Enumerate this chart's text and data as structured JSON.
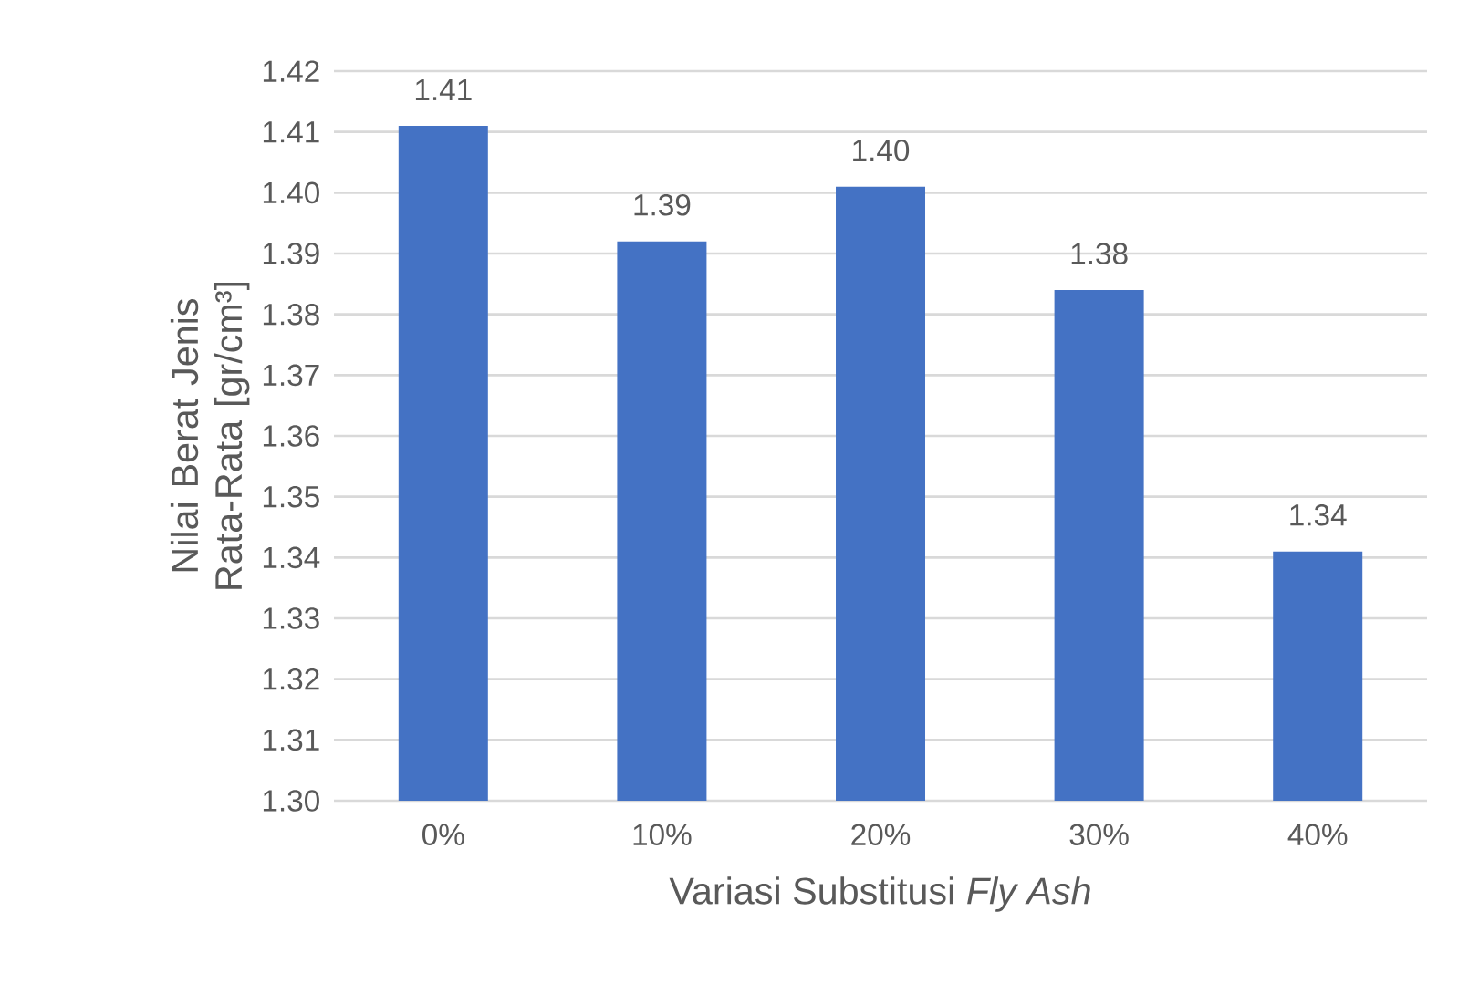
{
  "chart_data": {
    "type": "bar",
    "xlabel": "Variasi Substitusi *Fly Ash*",
    "ylabel": "Nilai Berat Jenis Rata-Rata [gr/cm³]",
    "categories": [
      "0%",
      "10%",
      "20%",
      "30%",
      "40%"
    ],
    "values": [
      1.411,
      1.392,
      1.401,
      1.384,
      1.341
    ],
    "value_labels": [
      "1.41",
      "1.39",
      "1.40",
      "1.38",
      "1.34"
    ],
    "color": "#4472c4",
    "ylim": [
      1.3,
      1.42
    ],
    "yticks": [
      {
        "value": 1.3,
        "label": "1.30"
      },
      1.31,
      1.32,
      1.33,
      1.34,
      1.35,
      1.36,
      1.37,
      1.38,
      1.39,
      {
        "value": 1.4,
        "label": "1.40"
      },
      1.41,
      1.42
    ],
    "grid": "y"
  }
}
